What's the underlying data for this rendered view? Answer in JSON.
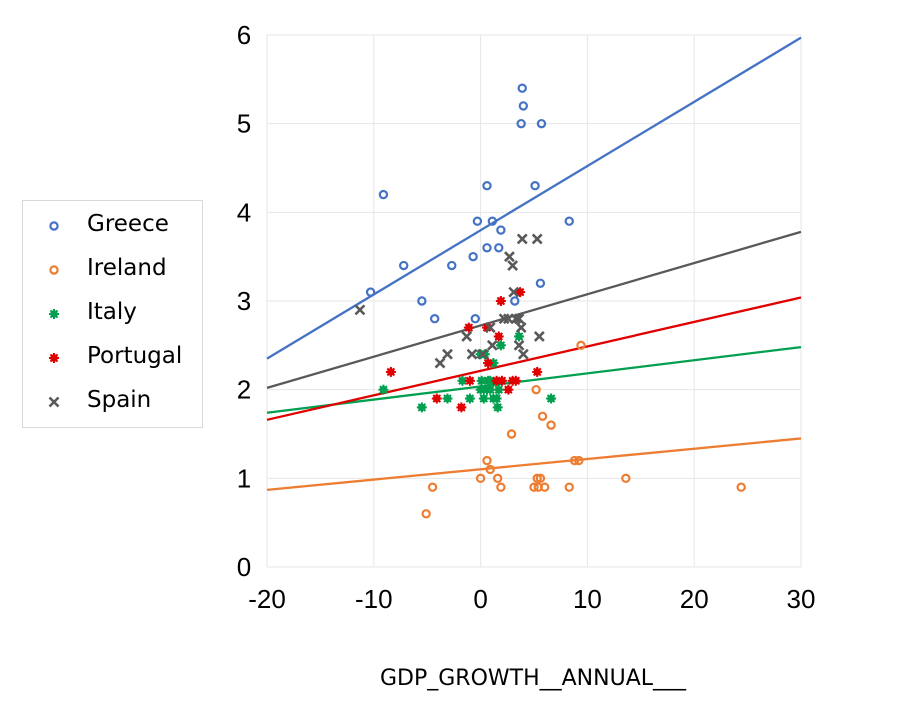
{
  "chart_data": {
    "type": "scatter",
    "title": "",
    "xlabel": "GDP_GROWTH__ANNUAL___",
    "ylabel": "",
    "xlim": [
      -20,
      30
    ],
    "ylim": [
      0,
      6
    ],
    "xticks": [
      "-20",
      "-10",
      "0",
      "10",
      "20",
      "30"
    ],
    "yticks": [
      "0",
      "1",
      "2",
      "3",
      "4",
      "5",
      "6"
    ],
    "grid": true,
    "legend_position": "left",
    "series": [
      {
        "name": "Greece",
        "color": "#4472c4",
        "marker": "ring",
        "trendline": [
          [
            -20,
            2.35
          ],
          [
            30,
            5.97
          ]
        ],
        "points": [
          [
            -9.1,
            4.2
          ],
          [
            -10.3,
            3.1
          ],
          [
            -7.2,
            3.4
          ],
          [
            -5.5,
            3.0
          ],
          [
            -4.3,
            2.8
          ],
          [
            -2.7,
            3.4
          ],
          [
            -0.7,
            3.5
          ],
          [
            -0.3,
            3.9
          ],
          [
            0.6,
            3.6
          ],
          [
            1.1,
            3.9
          ],
          [
            1.7,
            3.6
          ],
          [
            1.9,
            3.8
          ],
          [
            0.6,
            4.3
          ],
          [
            3.2,
            3.0
          ],
          [
            5.1,
            4.3
          ],
          [
            3.9,
            5.4
          ],
          [
            4.0,
            5.2
          ],
          [
            3.8,
            5.0
          ],
          [
            5.7,
            5.0
          ],
          [
            5.6,
            3.2
          ],
          [
            8.3,
            3.9
          ],
          [
            -0.5,
            2.8
          ]
        ]
      },
      {
        "name": "Ireland",
        "color": "#ed7d31",
        "marker": "ring",
        "trendline": [
          [
            -20,
            0.87
          ],
          [
            30,
            1.45
          ]
        ],
        "points": [
          [
            -5.1,
            0.6
          ],
          [
            -4.5,
            0.9
          ],
          [
            0.6,
            1.2
          ],
          [
            0.9,
            1.1
          ],
          [
            0.0,
            1.0
          ],
          [
            1.6,
            1.0
          ],
          [
            1.9,
            0.9
          ],
          [
            2.9,
            1.5
          ],
          [
            5.0,
            0.9
          ],
          [
            5.3,
            1.0
          ],
          [
            5.6,
            1.0
          ],
          [
            5.4,
            0.9
          ],
          [
            6.0,
            0.9
          ],
          [
            5.8,
            1.7
          ],
          [
            6.6,
            1.6
          ],
          [
            5.2,
            2.0
          ],
          [
            8.8,
            1.2
          ],
          [
            9.2,
            1.2
          ],
          [
            8.3,
            0.9
          ],
          [
            9.4,
            2.5
          ],
          [
            13.6,
            1.0
          ],
          [
            24.4,
            0.9
          ]
        ]
      },
      {
        "name": "Italy",
        "color": "#00a050",
        "marker": "gear",
        "trendline": [
          [
            -20,
            1.74
          ],
          [
            30,
            2.48
          ]
        ],
        "points": [
          [
            -9.1,
            2.0
          ],
          [
            -5.5,
            1.8
          ],
          [
            -3.1,
            1.9
          ],
          [
            -1.7,
            2.1
          ],
          [
            -1.0,
            1.9
          ],
          [
            0.0,
            2.4
          ],
          [
            0.4,
            2.4
          ],
          [
            0.1,
            2.1
          ],
          [
            0.0,
            2.0
          ],
          [
            0.3,
            1.9
          ],
          [
            0.6,
            2.0
          ],
          [
            0.9,
            2.0
          ],
          [
            1.2,
            1.9
          ],
          [
            0.9,
            2.1
          ],
          [
            1.2,
            2.3
          ],
          [
            1.7,
            2.0
          ],
          [
            1.5,
            1.9
          ],
          [
            1.6,
            1.8
          ],
          [
            1.9,
            2.5
          ],
          [
            3.6,
            2.6
          ],
          [
            6.6,
            1.9
          ],
          [
            0.7,
            2.1
          ]
        ]
      },
      {
        "name": "Portugal",
        "color": "#e00000",
        "marker": "gear",
        "trendline": [
          [
            -20,
            1.66
          ],
          [
            30,
            3.04
          ]
        ],
        "points": [
          [
            -8.4,
            2.2
          ],
          [
            -4.1,
            1.9
          ],
          [
            -1.8,
            1.8
          ],
          [
            -1.1,
            2.7
          ],
          [
            -1.0,
            2.1
          ],
          [
            0.6,
            2.7
          ],
          [
            0.7,
            2.3
          ],
          [
            1.9,
            3.0
          ],
          [
            1.7,
            2.6
          ],
          [
            2.0,
            2.1
          ],
          [
            2.6,
            2.0
          ],
          [
            3.3,
            2.1
          ],
          [
            3.7,
            3.1
          ],
          [
            5.3,
            2.2
          ],
          [
            1.5,
            2.1
          ],
          [
            3.0,
            2.1
          ]
        ]
      },
      {
        "name": "Spain",
        "color": "#595959",
        "marker": "x",
        "trendline": [
          [
            -20,
            2.02
          ],
          [
            30,
            3.78
          ]
        ],
        "points": [
          [
            -11.3,
            2.9
          ],
          [
            -3.8,
            2.3
          ],
          [
            -3.1,
            2.4
          ],
          [
            -1.3,
            2.6
          ],
          [
            -0.8,
            2.4
          ],
          [
            0.2,
            2.4
          ],
          [
            0.9,
            2.7
          ],
          [
            1.1,
            2.5
          ],
          [
            2.2,
            2.8
          ],
          [
            2.7,
            3.5
          ],
          [
            3.0,
            3.4
          ],
          [
            3.1,
            3.1
          ],
          [
            3.3,
            2.8
          ],
          [
            3.6,
            2.8
          ],
          [
            3.8,
            2.7
          ],
          [
            3.9,
            3.7
          ],
          [
            5.3,
            3.7
          ],
          [
            5.5,
            2.6
          ],
          [
            4.0,
            2.4
          ],
          [
            3.6,
            2.5
          ],
          [
            2.6,
            2.8
          ]
        ]
      }
    ]
  }
}
